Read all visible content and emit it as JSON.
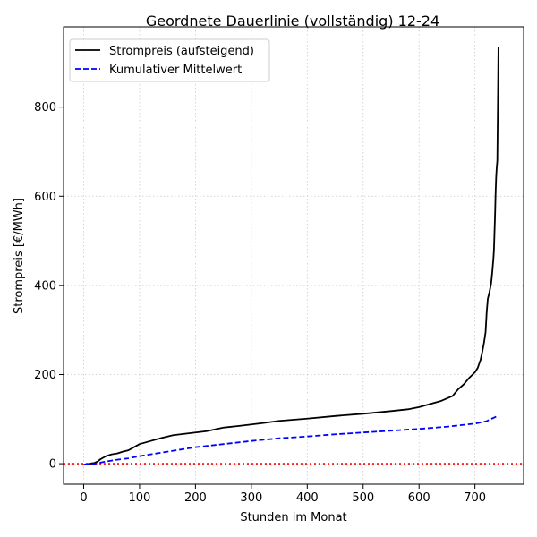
{
  "chart_data": {
    "type": "line",
    "title": "Geordnete Dauerlinie (vollständig) 12-24",
    "xlabel": "Stunden im Monat",
    "ylabel": "Strompreis [€/MWh]",
    "xlim": [
      -36,
      787
    ],
    "ylim": [
      -46,
      980
    ],
    "xticks": [
      0,
      100,
      200,
      300,
      400,
      500,
      600,
      700
    ],
    "yticks": [
      0,
      200,
      400,
      600,
      800
    ],
    "grid": true,
    "legend_position": "top-left",
    "reference_line": {
      "y": 0,
      "color": "#ff0000",
      "style": "dotted"
    },
    "series": [
      {
        "name": "Strompreis (aufsteigend)",
        "color": "#000000",
        "style": "solid",
        "points": [
          [
            0,
            -2
          ],
          [
            10,
            0
          ],
          [
            20,
            2
          ],
          [
            25,
            5
          ],
          [
            30,
            10
          ],
          [
            40,
            17
          ],
          [
            50,
            21
          ],
          [
            60,
            23
          ],
          [
            70,
            27
          ],
          [
            80,
            30
          ],
          [
            90,
            37
          ],
          [
            100,
            44
          ],
          [
            120,
            51
          ],
          [
            140,
            58
          ],
          [
            160,
            64
          ],
          [
            180,
            67
          ],
          [
            200,
            70
          ],
          [
            220,
            73
          ],
          [
            250,
            81
          ],
          [
            280,
            85
          ],
          [
            300,
            88
          ],
          [
            320,
            91
          ],
          [
            350,
            96
          ],
          [
            380,
            99
          ],
          [
            400,
            101
          ],
          [
            450,
            107
          ],
          [
            500,
            112
          ],
          [
            550,
            118
          ],
          [
            580,
            122
          ],
          [
            600,
            127
          ],
          [
            620,
            134
          ],
          [
            640,
            141
          ],
          [
            660,
            152
          ],
          [
            670,
            167
          ],
          [
            680,
            178
          ],
          [
            690,
            193
          ],
          [
            700,
            205
          ],
          [
            705,
            215
          ],
          [
            710,
            233
          ],
          [
            713,
            250
          ],
          [
            716,
            270
          ],
          [
            719,
            295
          ],
          [
            721,
            340
          ],
          [
            723,
            370
          ],
          [
            726,
            385
          ],
          [
            729,
            405
          ],
          [
            731,
            430
          ],
          [
            733,
            460
          ],
          [
            734,
            480
          ],
          [
            735,
            520
          ],
          [
            736,
            560
          ],
          [
            737,
            610
          ],
          [
            738,
            645
          ],
          [
            739,
            665
          ],
          [
            740,
            680
          ],
          [
            741,
            800
          ],
          [
            742,
            935
          ]
        ]
      },
      {
        "name": "Kumulativer Mittelwert",
        "color": "#0000ff",
        "style": "dashed",
        "points": [
          [
            0,
            -2
          ],
          [
            20,
            0
          ],
          [
            40,
            5
          ],
          [
            60,
            9
          ],
          [
            80,
            12
          ],
          [
            100,
            17
          ],
          [
            150,
            27
          ],
          [
            200,
            37
          ],
          [
            250,
            44
          ],
          [
            300,
            51
          ],
          [
            350,
            57
          ],
          [
            400,
            61
          ],
          [
            450,
            66
          ],
          [
            500,
            70
          ],
          [
            550,
            74
          ],
          [
            600,
            78
          ],
          [
            650,
            83
          ],
          [
            700,
            90
          ],
          [
            720,
            95
          ],
          [
            742,
            108
          ]
        ]
      }
    ]
  }
}
